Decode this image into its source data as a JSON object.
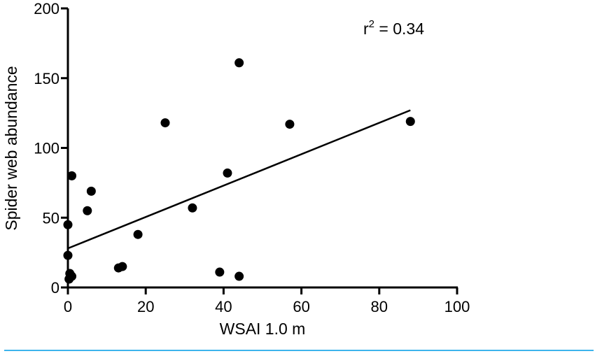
{
  "chart_data": {
    "type": "scatter",
    "title": "",
    "xlabel": "WSAI 1.0 m",
    "ylabel": "Spider web abundance",
    "xlim": [
      0,
      100
    ],
    "ylim": [
      0,
      200
    ],
    "x_ticks": [
      0,
      20,
      40,
      60,
      80,
      100
    ],
    "y_ticks": [
      0,
      50,
      100,
      150,
      200
    ],
    "x_tick_labels": [
      "0",
      "20",
      "40",
      "60",
      "80",
      "100"
    ],
    "y_tick_labels": [
      "0",
      "50",
      "100",
      "150",
      "200"
    ],
    "grid": false,
    "annotation": {
      "base": "r",
      "superscript": "2",
      "rest": " = 0.34"
    },
    "points": [
      {
        "x": 0,
        "y": 45
      },
      {
        "x": 0,
        "y": 23
      },
      {
        "x": 0.5,
        "y": 10
      },
      {
        "x": 0.3,
        "y": 6
      },
      {
        "x": 1,
        "y": 8
      },
      {
        "x": 1,
        "y": 80
      },
      {
        "x": 5,
        "y": 55
      },
      {
        "x": 6,
        "y": 69
      },
      {
        "x": 13,
        "y": 14
      },
      {
        "x": 14,
        "y": 15
      },
      {
        "x": 18,
        "y": 38
      },
      {
        "x": 25,
        "y": 118
      },
      {
        "x": 32,
        "y": 57
      },
      {
        "x": 39,
        "y": 11
      },
      {
        "x": 41,
        "y": 82
      },
      {
        "x": 44,
        "y": 161
      },
      {
        "x": 44,
        "y": 8
      },
      {
        "x": 57,
        "y": 117
      },
      {
        "x": 88,
        "y": 119
      }
    ],
    "fit_line": {
      "x": [
        0,
        88
      ],
      "y": [
        28,
        127
      ]
    }
  }
}
